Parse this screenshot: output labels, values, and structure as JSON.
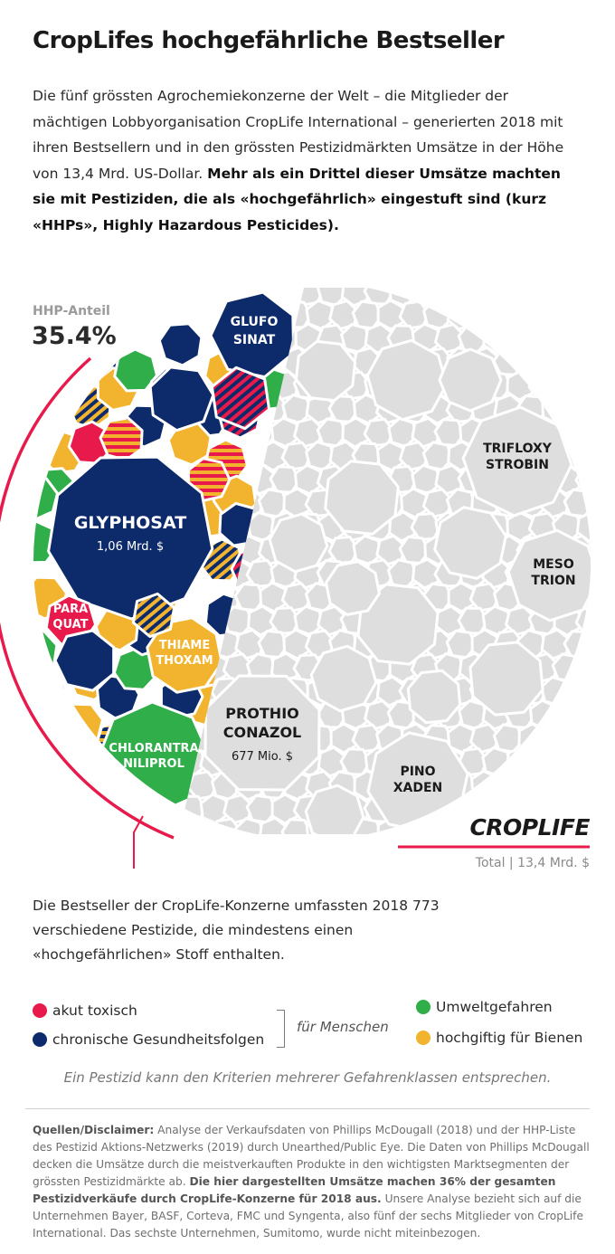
{
  "title": "CropLifes hochgefährliche Bestseller",
  "intro": {
    "text": "Die fünf grössten Agrochemiekonzerne der Welt – die Mitglieder der mächtigen Lobbyorganisation CropLife International – generierten 2018 mit ihren Bestsellern und in den grössten Pestizidmärkten Umsätze in der Höhe von 13,4 Mrd. US-Dollar.",
    "bold": "Mehr als ein Drittel dieser Umsätze machten sie mit Pestiziden, die als «hochgefährlich» eingestuft sind (kurz «HHPs», Highly Hazardous Pesticides)."
  },
  "chart_data": {
    "type": "voronoi-treemap",
    "share_label": "HHP-Anteil",
    "share_value": "35.4%",
    "brand": "CROPLIFE",
    "total_label": "Total | 13,4 Mrd. $",
    "total": 13.4,
    "total_unit": "Mrd. $",
    "hhp_share_percent": 35.4,
    "highlighted": [
      {
        "name_lines": [
          "GLUFO",
          "SINAT"
        ],
        "hazard": [
          "chronische Gesundheitsfolgen"
        ],
        "hhp": true
      },
      {
        "name_lines": [
          "GLYPHOSAT"
        ],
        "value_label": "1,06 Mrd. $",
        "value": 1.06,
        "unit": "Mrd. $",
        "hazard": [
          "chronische Gesundheitsfolgen"
        ],
        "hhp": true
      },
      {
        "name_lines": [
          "PARA",
          "QUAT"
        ],
        "hazard": [
          "akut toxisch"
        ],
        "hhp": true
      },
      {
        "name_lines": [
          "THIAME",
          "THOXAM"
        ],
        "hazard": [
          "hochgiftig für Bienen"
        ],
        "hhp": true
      },
      {
        "name_lines": [
          "CHLORANTRA",
          "NILIPROL"
        ],
        "hazard": [
          "Umweltgefahren"
        ],
        "hhp": true
      },
      {
        "name_lines": [
          "TRIFLOXY",
          "STROBIN"
        ],
        "hhp": false
      },
      {
        "name_lines": [
          "MESO",
          "TRION"
        ],
        "hhp": false
      },
      {
        "name_lines": [
          "PROTHIO",
          "CONAZOL"
        ],
        "value_label": "677 Mio. $",
        "value": 677,
        "unit": "Mio. $",
        "hhp": false
      },
      {
        "name_lines": [
          "PINO",
          "XADEN"
        ],
        "hhp": false
      }
    ],
    "colors": {
      "akut_toxisch": "#e8194b",
      "chronisch": "#0d2a6b",
      "umwelt": "#2fae4a",
      "bienen": "#f2b42f",
      "non_hhp": "#dedede",
      "non_hhp_label": "#1a1a1a",
      "outline": "#ffffff",
      "accent_arc": "#e8194b"
    }
  },
  "sub_note": "Die Bestseller der CropLife-Konzerne umfassten 2018 773 verschiedene Pestizide, die mindestens einen «hochgefährlichen» Stoff enthalten.",
  "legend": {
    "items": [
      {
        "label": "akut toxisch",
        "color": "#e8194b"
      },
      {
        "label": "chronische Gesundheitsfolgen",
        "color": "#0d2a6b"
      },
      {
        "label": "Umweltgefahren",
        "color": "#2fae4a"
      },
      {
        "label": "hochgiftig für Bienen",
        "color": "#f2b42f"
      }
    ],
    "humans_label": "für Menschen"
  },
  "note": "Ein Pestizid kann den Kriterien mehrerer Gefahrenklassen entsprechen.",
  "sources": {
    "head": "Quellen/Disclaimer:",
    "text1": "Analyse der Verkaufsdaten von Phillips McDougall (2018) und der HHP-Liste des Pestizid Aktions-Netzwerks (2019) durch Unearthed/Public Eye. Die Daten von Phillips McDougall decken die Umsätze durch die meistverkauften Produkte in den wichtigsten Marktsegmenten der grössten Pestizidmärkte ab.",
    "bold": "Die hier dargestellten Umsätze machen 36% der gesamten Pestizidverkäufe durch CropLife-Konzerne für 2018 aus.",
    "text2": "Unsere Analyse bezieht sich auf die Unternehmen Bayer, BASF, Corteva, FMC und Syngenta, also fünf der sechs Mitglieder von CropLife International. Das sechste Unternehmen, Sumitomo, wurde nicht miteinbezogen."
  }
}
